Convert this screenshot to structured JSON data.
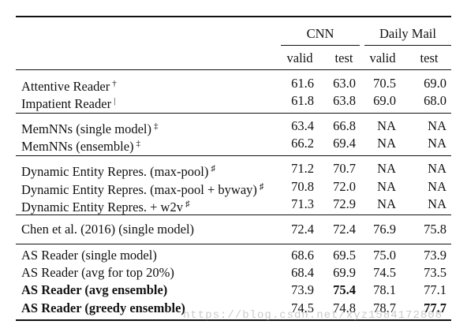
{
  "header": {
    "groups": [
      "CNN",
      "Daily Mail"
    ],
    "subcols": [
      "valid",
      "test",
      "valid",
      "test"
    ]
  },
  "rows": [
    {
      "model": "Attentive Reader",
      "mark": "†",
      "cnn_valid": "61.6",
      "cnn_test": "63.0",
      "dm_valid": "70.5",
      "dm_test": "69.0",
      "bold": false
    },
    {
      "model": "Impatient Reader",
      "mark": "|",
      "cnn_valid": "61.8",
      "cnn_test": "63.8",
      "dm_valid": "69.0",
      "dm_test": "68.0",
      "bold": false
    },
    {
      "model": "MemNNs (single model)",
      "mark": "‡",
      "cnn_valid": "63.4",
      "cnn_test": "66.8",
      "dm_valid": "NA",
      "dm_test": "NA",
      "bold": false
    },
    {
      "model": "MemNNs (ensemble)",
      "mark": "‡",
      "cnn_valid": "66.2",
      "cnn_test": "69.4",
      "dm_valid": "NA",
      "dm_test": "NA",
      "bold": false
    },
    {
      "model": "Dynamic Entity Repres. (max-pool)",
      "mark": "♯",
      "cnn_valid": "71.2",
      "cnn_test": "70.7",
      "dm_valid": "NA",
      "dm_test": "NA",
      "bold": false
    },
    {
      "model": "Dynamic Entity Repres. (max-pool + byway)",
      "mark": "♯",
      "cnn_valid": "70.8",
      "cnn_test": "72.0",
      "dm_valid": "NA",
      "dm_test": "NA",
      "bold": false
    },
    {
      "model": "Dynamic Entity Repres. + w2v",
      "mark": "♯",
      "cnn_valid": "71.3",
      "cnn_test": "72.9",
      "dm_valid": "NA",
      "dm_test": "NA",
      "bold": false
    },
    {
      "model": "Chen et al. (2016) (single model)",
      "mark": "",
      "cnn_valid": "72.4",
      "cnn_test": "72.4",
      "dm_valid": "76.9",
      "dm_test": "75.8",
      "bold": false
    },
    {
      "model": "AS Reader (single model)",
      "mark": "",
      "cnn_valid": "68.6",
      "cnn_test": "69.5",
      "dm_valid": "75.0",
      "dm_test": "73.9",
      "bold": false
    },
    {
      "model": "AS Reader (avg for top 20%)",
      "mark": "",
      "cnn_valid": "68.4",
      "cnn_test": "69.9",
      "dm_valid": "74.5",
      "dm_test": "73.5",
      "bold": false
    },
    {
      "model": "AS Reader (avg ensemble)",
      "mark": "",
      "cnn_valid": "73.9",
      "cnn_test": "75.4",
      "dm_valid": "78.1",
      "dm_test": "77.1",
      "bold": true,
      "bold_cells": [
        "cnn_test"
      ]
    },
    {
      "model": "AS Reader (greedy ensemble)",
      "mark": "",
      "cnn_valid": "74.5",
      "cnn_test": "74.8",
      "dm_valid": "78.7",
      "dm_test": "77.7",
      "bold": true,
      "bold_cells": [
        "dm_test"
      ]
    }
  ],
  "watermark": "https://blog.csdn.net/xyz1584172808"
}
